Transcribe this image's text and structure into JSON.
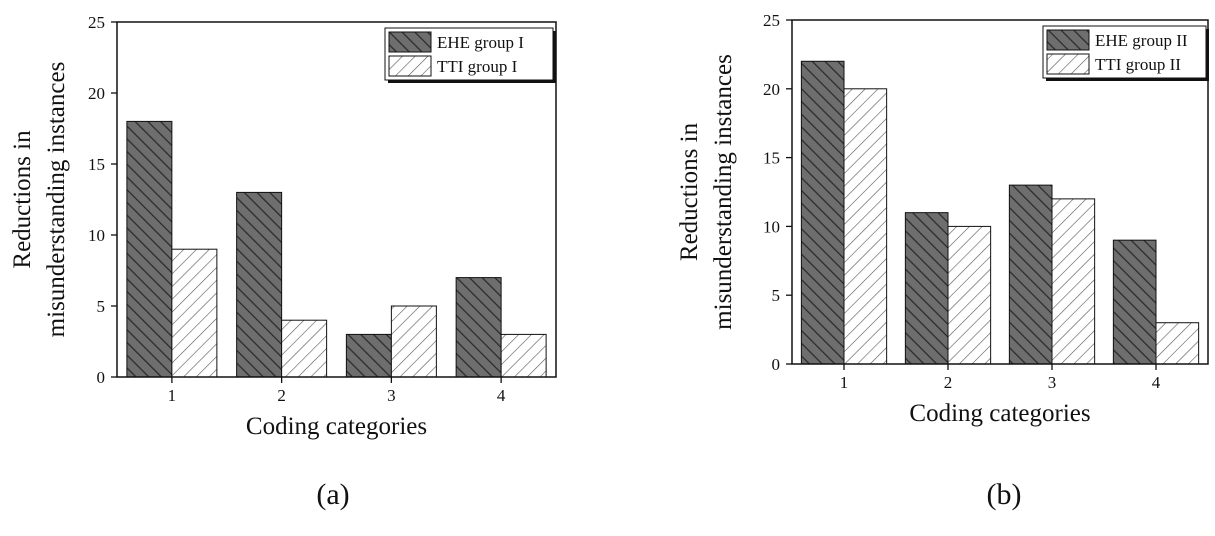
{
  "chart_data": [
    {
      "type": "bar",
      "panel_label": "(a)",
      "categories": [
        "1",
        "2",
        "3",
        "4"
      ],
      "series": [
        {
          "name": "EHE group I",
          "values": [
            18,
            13,
            3,
            7
          ],
          "pattern": "dark-hatch"
        },
        {
          "name": "TTI group I",
          "values": [
            9,
            4,
            5,
            3
          ],
          "pattern": "light-hatch"
        }
      ],
      "xlabel": "Coding categories",
      "ylabel_line1": "Reductions in",
      "ylabel_line2": "misunderstanding instances",
      "ylim": [
        0,
        25
      ],
      "yticks": [
        "0",
        "5",
        "10",
        "15",
        "20",
        "25"
      ],
      "legend_position": "top-right",
      "grid": false
    },
    {
      "type": "bar",
      "panel_label": "(b)",
      "categories": [
        "1",
        "2",
        "3",
        "4"
      ],
      "series": [
        {
          "name": "EHE group II",
          "values": [
            22,
            11,
            13,
            9
          ],
          "pattern": "dark-hatch"
        },
        {
          "name": "TTI group II",
          "values": [
            20,
            10,
            12,
            3
          ],
          "pattern": "light-hatch"
        }
      ],
      "xlabel": "Coding categories",
      "ylabel_line1": "Reductions in",
      "ylabel_line2": "misunderstanding instances",
      "ylim": [
        0,
        25
      ],
      "yticks": [
        "0",
        "5",
        "10",
        "15",
        "20",
        "25"
      ],
      "legend_position": "top-right",
      "grid": false
    }
  ],
  "colors": {
    "dark_bar_fill": "#6e6e6e",
    "dark_bar_hatch": "#2a2a2a",
    "light_bar_fill": "#ffffff",
    "light_bar_hatch": "#555555",
    "axis": "#111111"
  }
}
